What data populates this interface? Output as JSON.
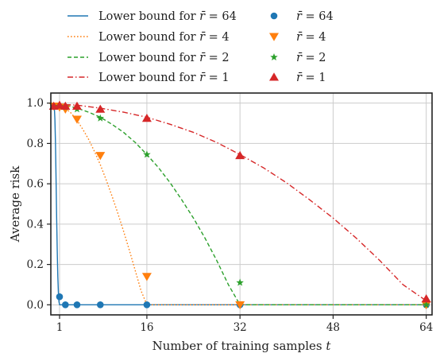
{
  "chart_data": {
    "type": "line",
    "xlabel": "Number of training samples t",
    "xlabel_main": "Number of training samples ",
    "xlabel_var": "t",
    "ylabel": "Average risk",
    "xlim": [
      -0.5,
      65
    ],
    "ylim": [
      -0.05,
      1.05
    ],
    "xticks": [
      1,
      16,
      32,
      48,
      64
    ],
    "xtick_labels": [
      "1",
      "16",
      "32",
      "48",
      "64"
    ],
    "yticks": [
      0.0,
      0.2,
      0.4,
      0.6,
      0.8,
      1.0
    ],
    "ytick_labels": [
      "0.0",
      "0.2",
      "0.4",
      "0.6",
      "0.8",
      "1.0"
    ],
    "grid": true,
    "legend_position": "top",
    "legend_columns": 2,
    "series": [
      {
        "name": "Lower bound for r̄ = 64",
        "rbar": 64,
        "kind": "bound",
        "color": "#1f77b4",
        "dash": "solid",
        "x": [
          0,
          0.1,
          0.2,
          0.3,
          0.4,
          0.5,
          0.6,
          0.7,
          0.8,
          0.9,
          1,
          2,
          4,
          8,
          16,
          32,
          64
        ],
        "y": [
          1.0,
          0.98,
          0.92,
          0.8,
          0.62,
          0.43,
          0.27,
          0.14,
          0.06,
          0.015,
          0.0,
          0.0,
          0.0,
          0.0,
          0.0,
          0.0,
          0.0
        ]
      },
      {
        "name": "Lower bound for r̄ = 4",
        "rbar": 4,
        "kind": "bound",
        "color": "#ff7f0e",
        "dash": "dotted",
        "x": [
          0,
          1,
          2,
          3,
          4,
          5,
          6,
          7,
          8,
          9,
          10,
          11,
          12,
          13,
          14,
          15,
          16,
          32,
          64
        ],
        "y": [
          0.995,
          0.99,
          0.975,
          0.95,
          0.915,
          0.87,
          0.82,
          0.76,
          0.695,
          0.62,
          0.54,
          0.455,
          0.365,
          0.27,
          0.17,
          0.07,
          0.0,
          0.0,
          0.0
        ]
      },
      {
        "name": "Lower bound for r̄ = 2",
        "rbar": 2,
        "kind": "bound",
        "color": "#2ca02c",
        "dash": "dashed",
        "x": [
          0,
          2,
          4,
          6,
          8,
          10,
          12,
          14,
          16,
          18,
          20,
          22,
          24,
          26,
          28,
          30,
          32,
          48,
          64
        ],
        "y": [
          0.995,
          0.99,
          0.975,
          0.955,
          0.93,
          0.895,
          0.855,
          0.805,
          0.745,
          0.68,
          0.605,
          0.52,
          0.43,
          0.33,
          0.22,
          0.1,
          0.0,
          0.0,
          0.0
        ]
      },
      {
        "name": "Lower bound for r̄ = 1",
        "rbar": 1,
        "kind": "bound",
        "color": "#d62728",
        "dash": "dashdot",
        "x": [
          0,
          4,
          8,
          12,
          16,
          20,
          24,
          28,
          32,
          36,
          40,
          44,
          48,
          52,
          56,
          60,
          64
        ],
        "y": [
          0.995,
          0.99,
          0.975,
          0.955,
          0.93,
          0.895,
          0.855,
          0.805,
          0.745,
          0.68,
          0.605,
          0.52,
          0.43,
          0.33,
          0.22,
          0.1,
          0.02
        ]
      },
      {
        "name": "r̄ = 64",
        "rbar": 64,
        "kind": "points",
        "color": "#1f77b4",
        "marker": "circle",
        "x": [
          0,
          1,
          2,
          4,
          8,
          16,
          32,
          64
        ],
        "y": [
          0.985,
          0.04,
          0.0,
          0.0,
          0.0,
          0.0,
          0.0,
          0.0
        ]
      },
      {
        "name": "r̄ = 4",
        "rbar": 4,
        "kind": "points",
        "color": "#ff7f0e",
        "marker": "triangle-down",
        "x": [
          0,
          1,
          2,
          4,
          8,
          16,
          32,
          64
        ],
        "y": [
          0.985,
          0.98,
          0.97,
          0.92,
          0.74,
          0.14,
          0.0,
          0.0
        ]
      },
      {
        "name": "r̄ = 2",
        "rbar": 2,
        "kind": "points",
        "color": "#2ca02c",
        "marker": "star",
        "x": [
          0,
          1,
          2,
          4,
          8,
          16,
          32,
          64
        ],
        "y": [
          0.985,
          0.985,
          0.98,
          0.97,
          0.925,
          0.745,
          0.11,
          0.0
        ]
      },
      {
        "name": "r̄ = 1",
        "rbar": 1,
        "kind": "points",
        "color": "#d62728",
        "marker": "triangle-up",
        "x": [
          0,
          1,
          2,
          4,
          8,
          16,
          32,
          64
        ],
        "y": [
          0.985,
          0.99,
          0.985,
          0.985,
          0.97,
          0.925,
          0.74,
          0.03
        ]
      }
    ]
  }
}
